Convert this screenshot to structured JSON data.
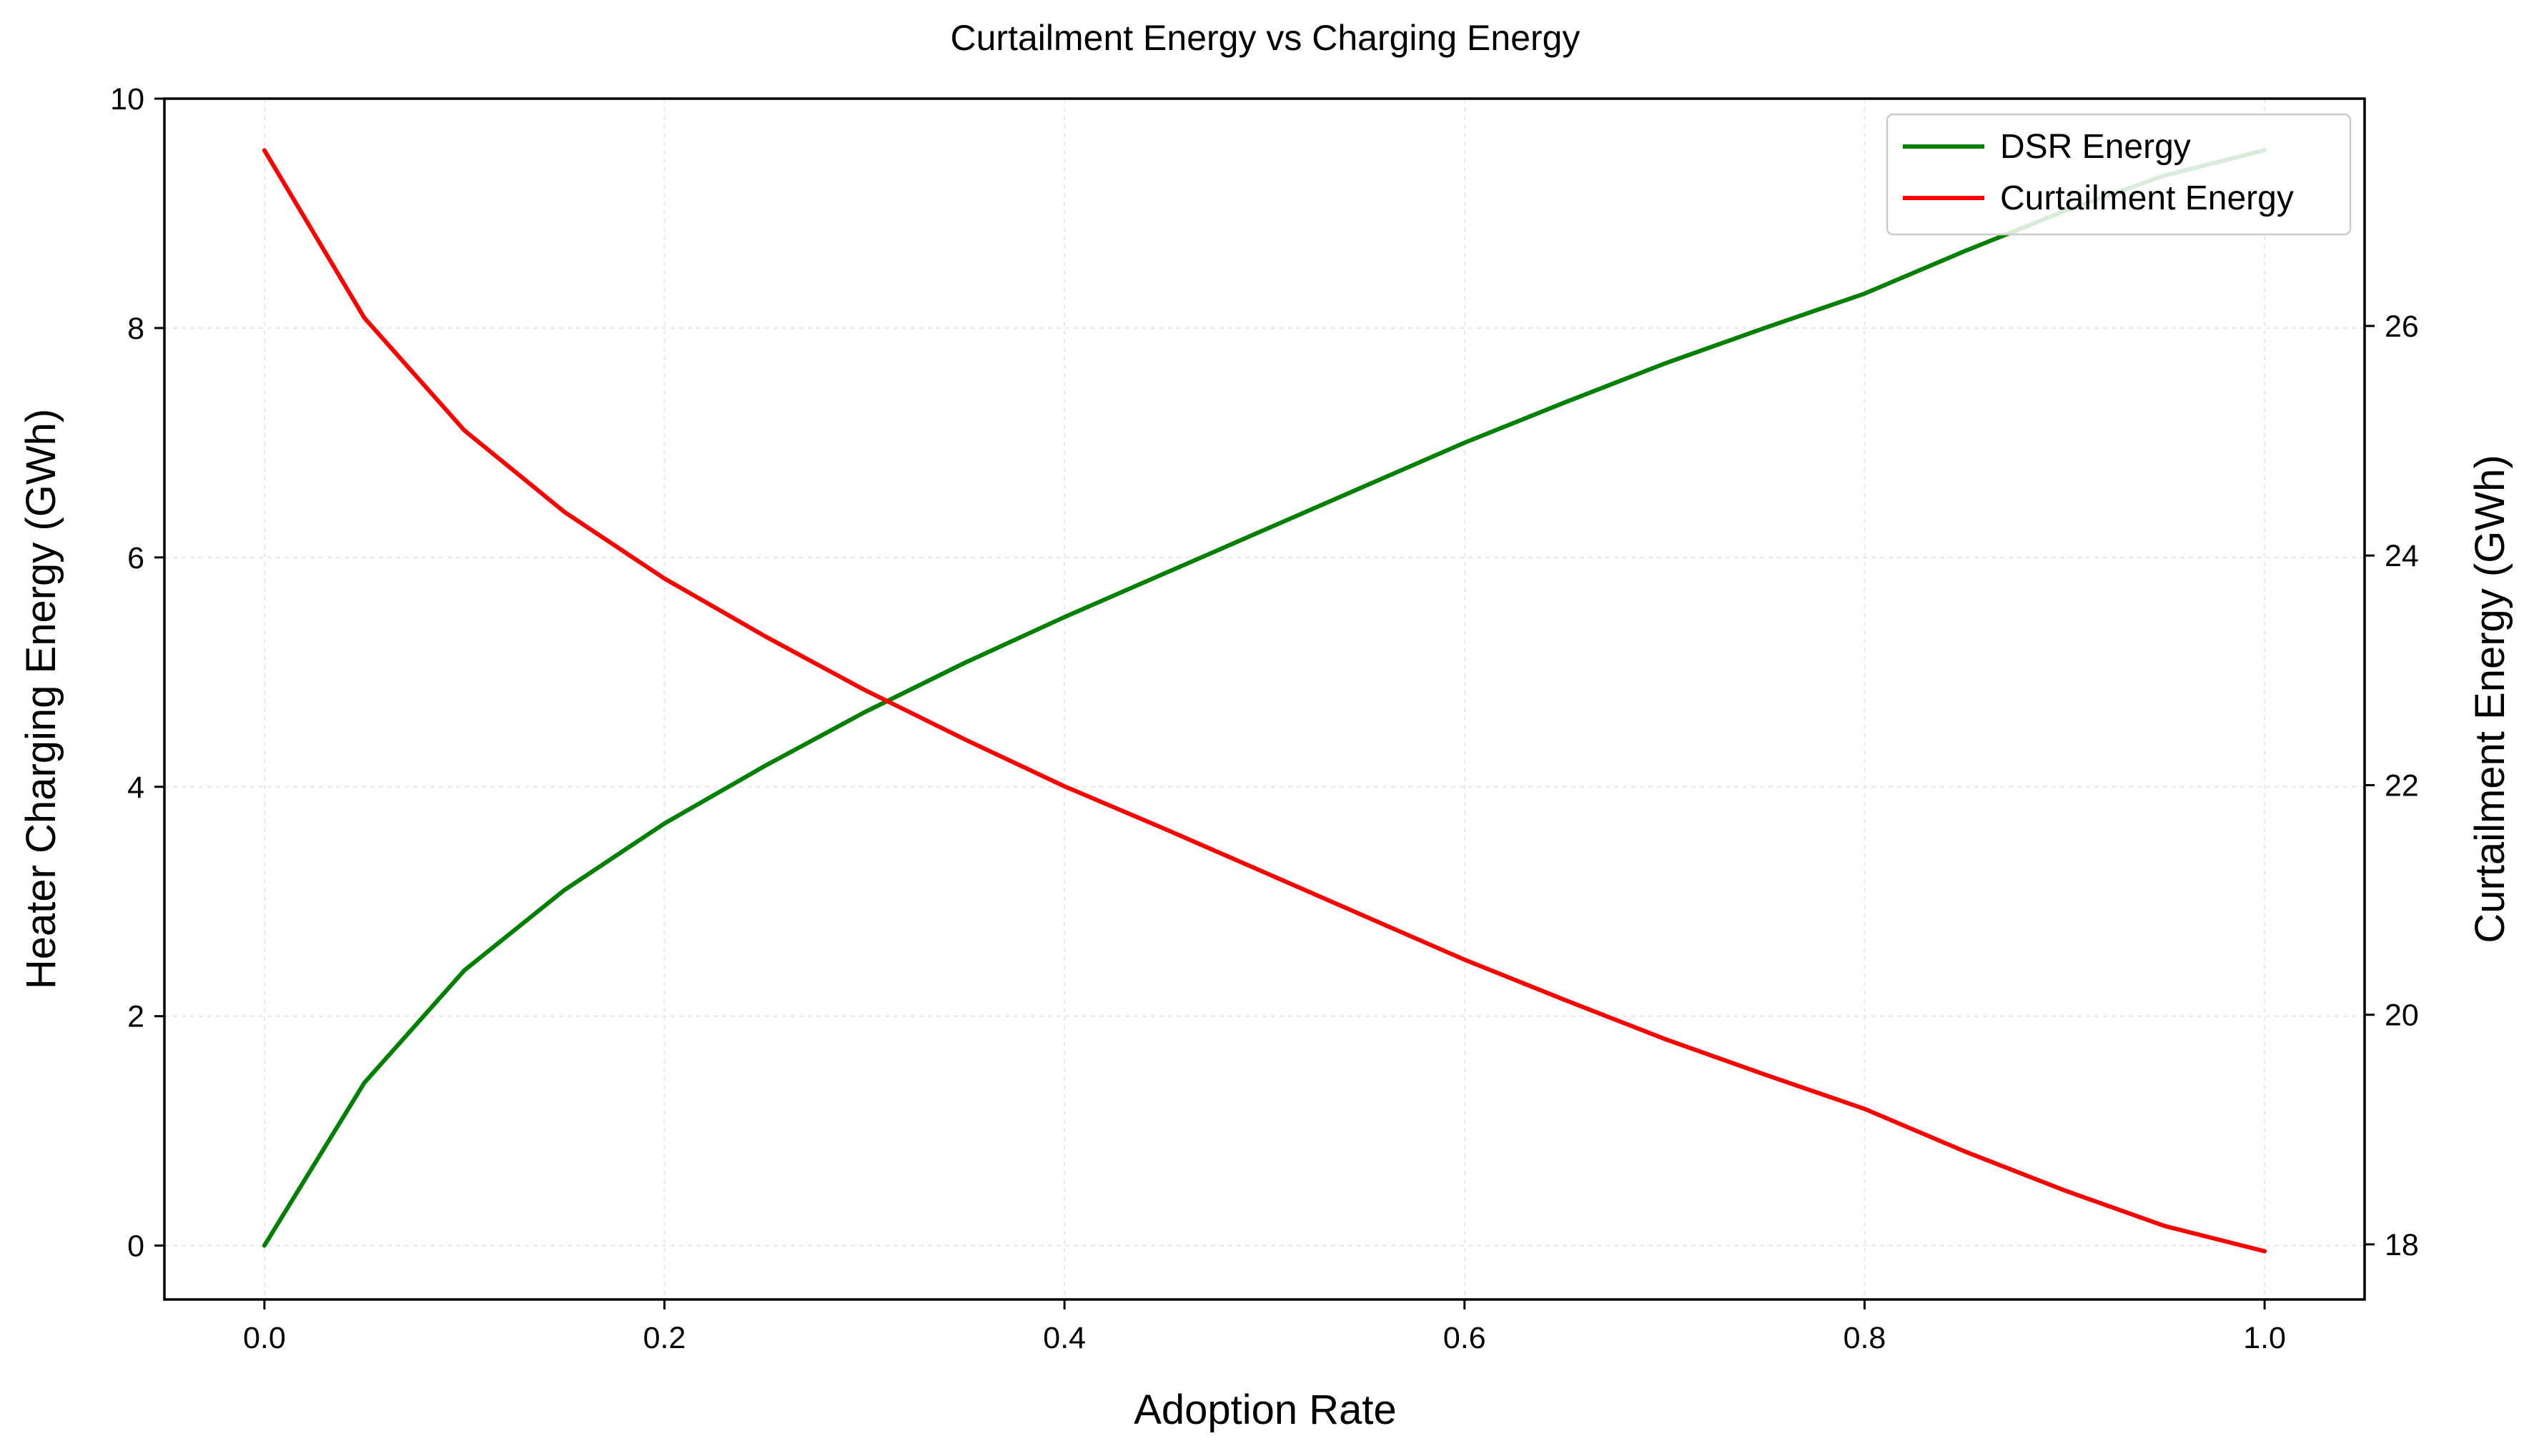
{
  "chart_data": {
    "type": "line",
    "title": "Curtailment Energy vs Charging Energy",
    "xlabel": "Adoption Rate",
    "ylabel": "Heater Charging Energy (GWh)",
    "y2label": "Curtailment Energy (GWh)",
    "xlim": [
      -0.05,
      1.05
    ],
    "ylim": [
      -0.47,
      10.0
    ],
    "y2lim": [
      17.52,
      27.98
    ],
    "x_ticks": [
      0.0,
      0.2,
      0.4,
      0.6,
      0.8,
      1.0
    ],
    "x_tick_labels": [
      "0.0",
      "0.2",
      "0.4",
      "0.6",
      "0.8",
      "1.0"
    ],
    "y_ticks": [
      0,
      2,
      4,
      6,
      8,
      10
    ],
    "y_tick_labels": [
      "0",
      "2",
      "4",
      "6",
      "8",
      "10"
    ],
    "y2_ticks": [
      18,
      20,
      22,
      24,
      26
    ],
    "y2_tick_labels": [
      "18",
      "20",
      "22",
      "24",
      "26"
    ],
    "grid": true,
    "legend_position": "top-right",
    "x": [
      0.0,
      0.05,
      0.1,
      0.15,
      0.2,
      0.25,
      0.3,
      0.35,
      0.4,
      0.45,
      0.5,
      0.55,
      0.6,
      0.65,
      0.7,
      0.75,
      0.8,
      0.85,
      0.9,
      0.95,
      1.0
    ],
    "series": [
      {
        "name": "DSR Energy",
        "axis": "left",
        "color": "#008000",
        "values": [
          0.0,
          1.42,
          2.4,
          3.1,
          3.68,
          4.18,
          4.65,
          5.08,
          5.48,
          5.86,
          6.24,
          6.62,
          7.0,
          7.35,
          7.69,
          8.0,
          8.3,
          8.67,
          9.02,
          9.33,
          9.55
        ]
      },
      {
        "name": "Curtailment Energy",
        "axis": "right",
        "color": "#ff0000",
        "values": [
          27.53,
          26.07,
          25.09,
          24.38,
          23.8,
          23.3,
          22.83,
          22.4,
          21.99,
          21.62,
          21.24,
          20.86,
          20.48,
          20.13,
          19.79,
          19.48,
          19.18,
          18.81,
          18.47,
          18.16,
          17.94
        ]
      }
    ]
  }
}
